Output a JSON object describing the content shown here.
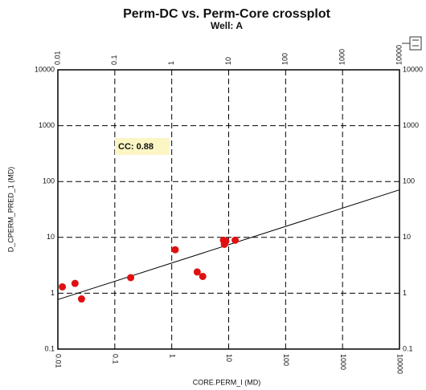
{
  "chart_data": {
    "type": "scatter",
    "title": "Perm-DC vs. Perm-Core crossplot",
    "subtitle": "Well: A",
    "xlabel": "CORE.PERM_I (MD)",
    "ylabel": "D_CPERM_PRED_1 (MD)",
    "annotation": "CC: 0.88",
    "xscale": "log",
    "yscale": "log",
    "grid": true,
    "color": "#e01010",
    "x": [
      0.012,
      0.02,
      0.026,
      0.19,
      1.15,
      2.8,
      3.5,
      8.1,
      8.4,
      8.9,
      13
    ],
    "values": [
      1.3,
      1.5,
      0.79,
      1.9,
      6.0,
      2.4,
      2.0,
      8.9,
      7.5,
      8.6,
      8.9
    ],
    "trendline": {
      "x": [
        0.01,
        10000
      ],
      "values": [
        0.77,
        71
      ],
      "color": "#000000"
    },
    "xlim": [
      0.01,
      10000
    ],
    "xticks": [
      0.01,
      0.1,
      1,
      10,
      100,
      1000,
      10000
    ],
    "ylim": [
      0.1,
      10000
    ],
    "yticks": [
      0.1,
      1,
      10,
      100,
      1000,
      10000
    ]
  }
}
